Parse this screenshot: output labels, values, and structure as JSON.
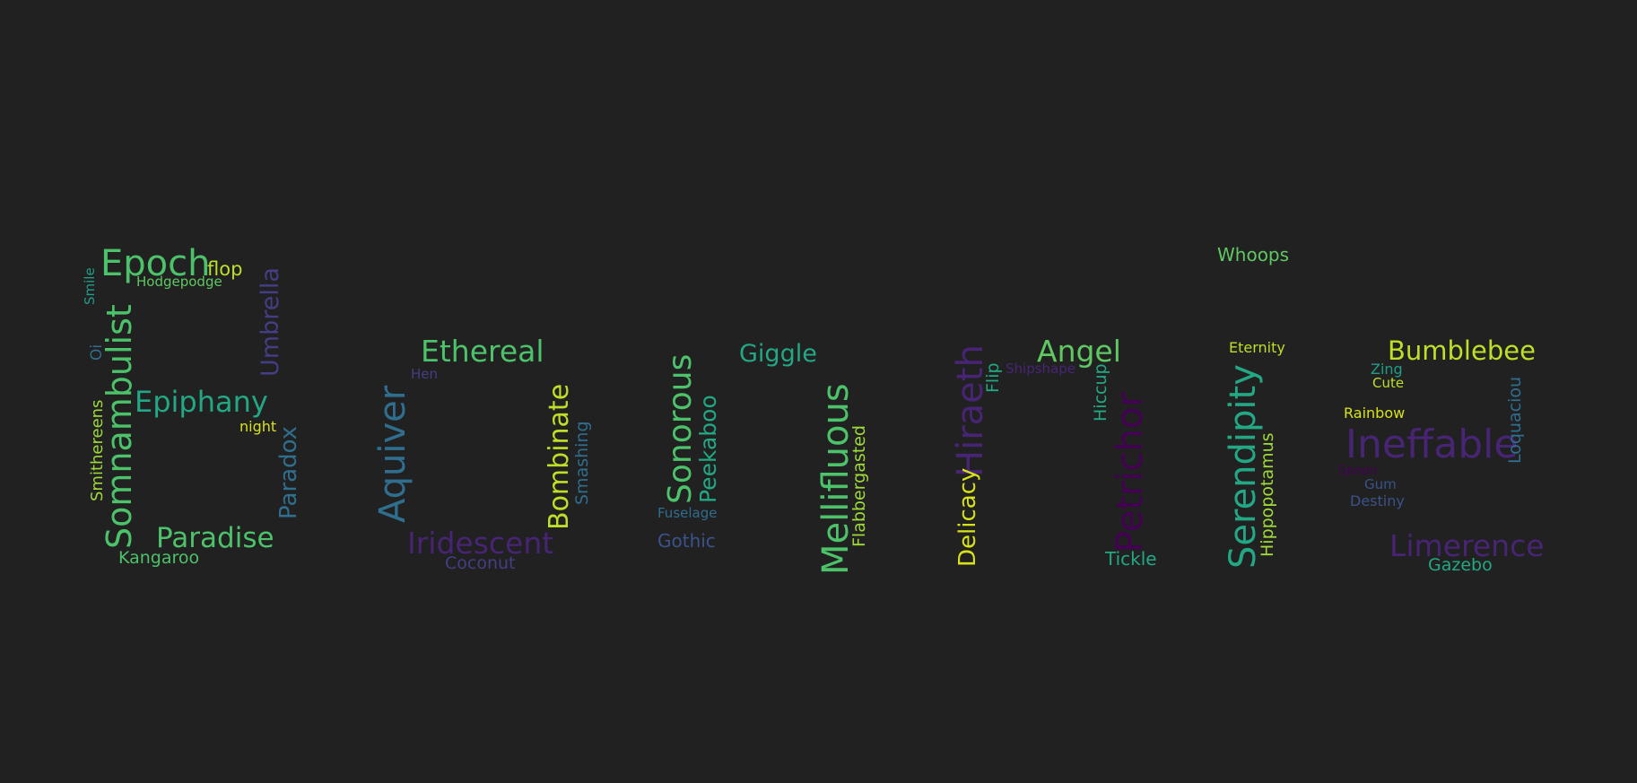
{
  "words": {
    "epoch": "Epoch",
    "flop": "flop",
    "hodgepodge": "Hodgepodge",
    "smile": "Smile",
    "somnambulist": "Somnambulist",
    "umbrella": "Umbrella",
    "oi": "Oi",
    "epiphany": "Epiphany",
    "night": "night",
    "smithereens": "Smithereens",
    "paradox": "Paradox",
    "paradise": "Paradise",
    "kangaroo": "Kangaroo",
    "ethereal": "Ethereal",
    "hen": "Hen",
    "aquiver": "Aquiver",
    "bombinate": "Bombinate",
    "smashing": "Smashing",
    "iridescent": "Iridescent",
    "coconut": "Coconut",
    "sonorous": "Sonorous",
    "giggle": "Giggle",
    "peekaboo": "Peekaboo",
    "fuselage": "Fuselage",
    "gothic": "Gothic",
    "mellifluous": "Mellifluous",
    "flabbergasted": "Flabbergasted",
    "hiraeth": "Hiraeth",
    "flip": "Flip",
    "delicacy": "Delicacy",
    "angel": "Angel",
    "shipshape": "Shipshape",
    "hiccup": "Hiccup",
    "petrichor": "Petrichor",
    "tickle": "Tickle",
    "whoops": "Whoops",
    "eternity": "Eternity",
    "serendipity": "Serendipity",
    "hippopotamus": "Hippopotamus",
    "bumblebee": "Bumblebee",
    "zing": "Zing",
    "cute": "Cute",
    "rainbow": "Rainbow",
    "ineffable": "Ineffable",
    "loquacious": "Loquaciou",
    "unknown_small": "Spoon",
    "gum": "Gum",
    "destiny": "Destiny",
    "limerence": "Limerence",
    "gazebo": "Gazebo"
  },
  "colors": {
    "background": "#212121",
    "green": "#4cc26a",
    "teal": "#22a884",
    "yellow": "#bddf26",
    "blue": "#2f6e8e",
    "indigo": "#433e85",
    "purple": "#482475",
    "violet": "#440154"
  }
}
